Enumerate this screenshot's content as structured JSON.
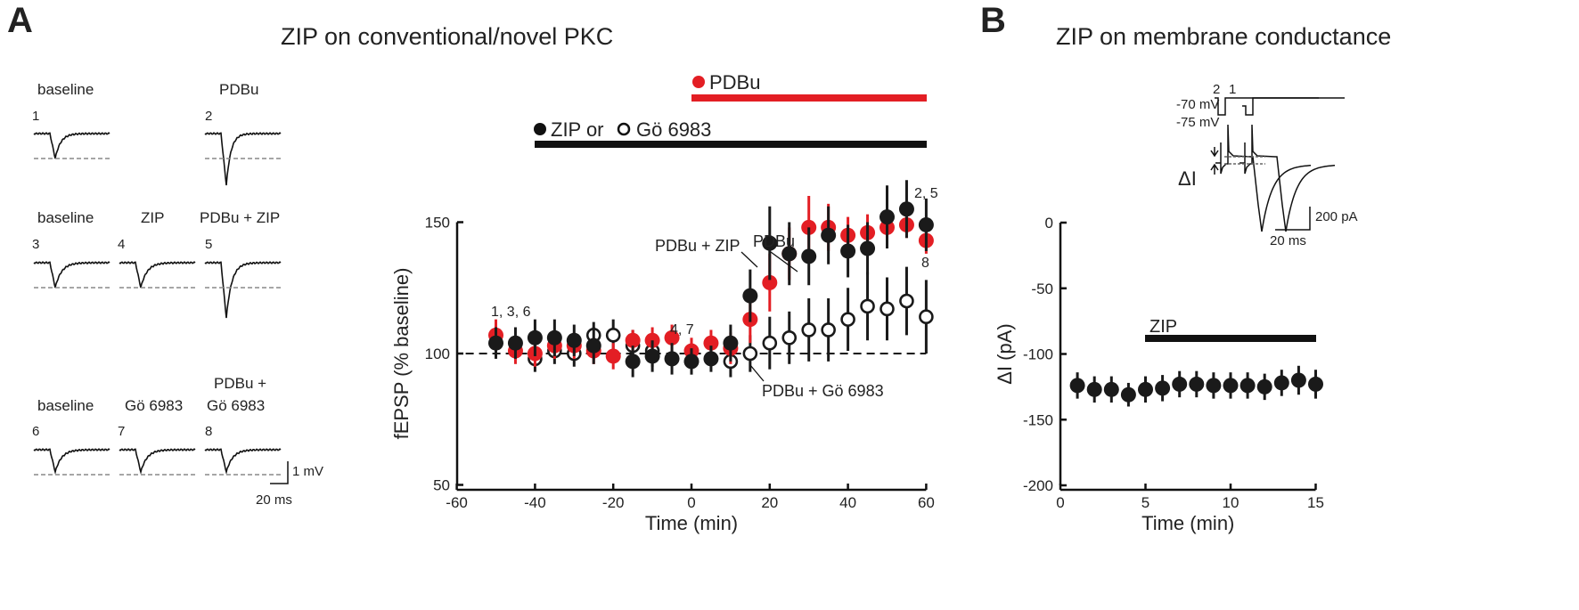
{
  "panels": {
    "A": {
      "letter": "A",
      "title": "ZIP on conventional/novel PKC",
      "traces": {
        "row1": [
          "baseline",
          "PDBu"
        ],
        "row1_nums": [
          "1",
          "2"
        ],
        "row2": [
          "baseline",
          "ZIP",
          "PDBu + ZIP"
        ],
        "row2_nums": [
          "3",
          "4",
          "5"
        ],
        "row3": [
          "baseline",
          "Gö 6983",
          "PDBu +",
          "Gö 6983"
        ],
        "row3_nums": [
          "6",
          "7",
          "8"
        ],
        "scale_v": "1 mV",
        "scale_t": "20 ms"
      },
      "bars": {
        "pdbu": "PDBu",
        "zip_or": "ZIP or",
        "go": "Gö 6983"
      },
      "annotations": {
        "pdbu": "PDBu",
        "pdbu_zip": "PDBu + ZIP",
        "pdbu_go": "PDBu + Gö 6983",
        "n136": "1, 3, 6",
        "n47": "4, 7",
        "n25": "2, 5",
        "n8": "8"
      }
    },
    "B": {
      "letter": "B",
      "title": "ZIP on membrane conductance",
      "trace": {
        "n1": "1",
        "n2": "2",
        "v1": "-70 mV",
        "v2": "-75 mV",
        "di": "ΔI",
        "scale_i": "200 pA",
        "scale_t": "20 ms"
      },
      "bar": "ZIP"
    }
  },
  "chart_data": [
    {
      "type": "scatter",
      "xlabel": "Time (min)",
      "ylabel": "fEPSP (% baseline)",
      "xlim": [
        -60,
        60
      ],
      "ylim": [
        50,
        150
      ],
      "xticks": [
        "-60",
        "-40",
        "-20",
        "0",
        "20",
        "40",
        "60"
      ],
      "yticks": [
        "50",
        "100",
        "150"
      ],
      "baseline": 100,
      "x": [
        -50,
        -45,
        -40,
        -35,
        -30,
        -25,
        -20,
        -15,
        -10,
        -5,
        0,
        5,
        10,
        15,
        20,
        25,
        30,
        35,
        40,
        45,
        50,
        55,
        60
      ],
      "series": [
        {
          "name": "PDBu",
          "color": "#e31e24",
          "fill": true,
          "values": [
            107,
            101,
            100,
            103,
            103,
            101,
            99,
            105,
            105,
            106,
            101,
            104,
            102,
            113,
            127,
            138,
            148,
            148,
            145,
            146,
            148,
            149,
            143
          ],
          "err": [
            6,
            5,
            5,
            5,
            5,
            5,
            5,
            4,
            5,
            5,
            5,
            5,
            6,
            9,
            11,
            10,
            12,
            9,
            7,
            7,
            8,
            5,
            5
          ]
        },
        {
          "name": "PDBu + ZIP",
          "color": "#1a1a1a",
          "fill": true,
          "values": [
            104,
            104,
            106,
            106,
            105,
            103,
            null,
            97,
            99,
            98,
            97,
            98,
            104,
            122,
            142,
            138,
            137,
            145,
            139,
            140,
            152,
            155,
            149
          ],
          "err": [
            6,
            6,
            7,
            7,
            6,
            7,
            null,
            6,
            6,
            6,
            5,
            5,
            7,
            10,
            14,
            12,
            11,
            11,
            10,
            10,
            12,
            11,
            10
          ]
        },
        {
          "name": "PDBu + Gö 6983",
          "color": "#1a1a1a",
          "fill": false,
          "values": [
            null,
            null,
            98,
            101,
            100,
            107,
            107,
            103,
            101,
            null,
            97,
            null,
            97,
            100,
            104,
            106,
            109,
            109,
            113,
            118,
            117,
            120,
            114
          ],
          "err": [
            null,
            null,
            5,
            5,
            5,
            5,
            6,
            6,
            6,
            null,
            5,
            null,
            6,
            7,
            10,
            10,
            12,
            12,
            12,
            13,
            12,
            13,
            14
          ]
        }
      ]
    },
    {
      "type": "scatter",
      "xlabel": "Time (min)",
      "ylabel": "ΔI (pA)",
      "xlim": [
        0,
        15
      ],
      "ylim": [
        -200,
        0
      ],
      "xticks": [
        "0",
        "5",
        "10",
        "15"
      ],
      "yticks": [
        "0",
        "-50",
        "-100",
        "-150",
        "-200"
      ],
      "x": [
        1,
        2,
        3,
        4,
        5,
        6,
        7,
        8,
        9,
        10,
        11,
        12,
        13,
        14,
        15
      ],
      "series": [
        {
          "color": "#1a1a1a",
          "fill": true,
          "values": [
            -124,
            -127,
            -127,
            -131,
            -127,
            -126,
            -123,
            -123,
            -124,
            -124,
            -124,
            -125,
            -122,
            -120,
            -123
          ],
          "err": [
            10,
            10,
            10,
            9,
            10,
            10,
            10,
            10,
            10,
            10,
            10,
            10,
            10,
            11,
            11
          ]
        }
      ]
    }
  ]
}
